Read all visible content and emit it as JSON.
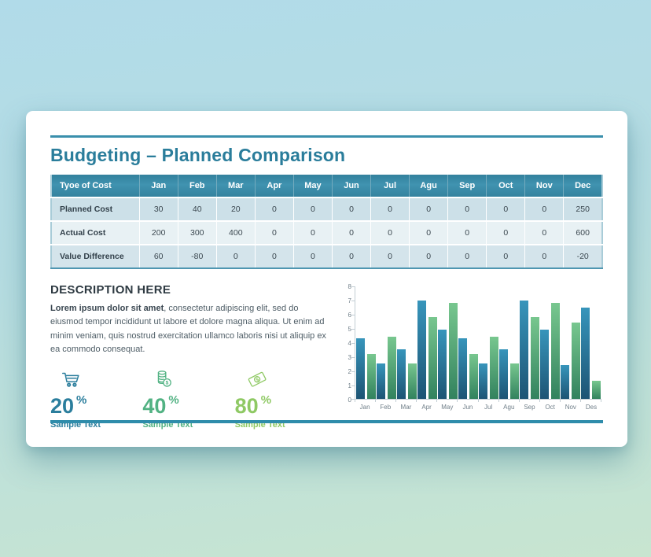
{
  "slide": {
    "title": "Budgeting – Planned Comparison"
  },
  "table": {
    "header": [
      "Tyoe of Cost",
      "Jan",
      "Feb",
      "Mar",
      "Apr",
      "May",
      "Jun",
      "Jul",
      "Agu",
      "Sep",
      "Oct",
      "Nov",
      "Dec"
    ],
    "rows": [
      {
        "label": "Planned Cost",
        "values": [
          30,
          40,
          20,
          0,
          0,
          0,
          0,
          0,
          0,
          0,
          0,
          250
        ]
      },
      {
        "label": "Actual Cost",
        "values": [
          200,
          300,
          400,
          0,
          0,
          0,
          0,
          0,
          0,
          0,
          0,
          600
        ]
      },
      {
        "label": "Value Difference",
        "values": [
          60,
          -80,
          0,
          0,
          0,
          0,
          0,
          0,
          0,
          0,
          0,
          -20
        ]
      }
    ]
  },
  "description": {
    "heading": "DESCRIPTION HERE",
    "lead": "Lorem ipsum dolor sit amet",
    "body": ", consectetur adipiscing elit, sed do eiusmod tempor incididunt ut labore et dolore magna aliqua. Ut enim ad minim veniam, quis nostrud exercitation ullamco laboris nisi ut aliquip ex ea commodo consequat."
  },
  "stats": [
    {
      "icon": "shopping-cart-icon",
      "value": "20",
      "unit": "%",
      "label": "Sample Text",
      "color": "#2b7e9d"
    },
    {
      "icon": "coins-icon",
      "value": "40",
      "unit": "%",
      "label": "Sample Text",
      "color": "#52b283"
    },
    {
      "icon": "banknote-icon",
      "value": "80",
      "unit": "%",
      "label": "Sample Text",
      "color": "#8fc964"
    }
  ],
  "chart_data": {
    "type": "bar",
    "categories": [
      "Jan",
      "Feb",
      "Mar",
      "Apr",
      "May",
      "Jun",
      "Jul",
      "Agu",
      "Sep",
      "Oct",
      "Nov",
      "Des"
    ],
    "series": [
      {
        "name": "blue",
        "color_bottom": "#1d5474",
        "color_top": "#3795bb",
        "values": [
          4.3,
          2.5,
          3.5,
          7.0,
          4.9,
          4.3,
          2.5,
          3.5,
          7.0,
          4.9,
          2.4,
          6.5
        ]
      },
      {
        "name": "green",
        "color_bottom": "#32825e",
        "color_top": "#78c78f",
        "values": [
          3.2,
          4.4,
          2.5,
          5.8,
          6.8,
          3.2,
          4.4,
          2.5,
          5.8,
          6.8,
          5.4,
          1.3
        ]
      }
    ],
    "title": "",
    "xlabel": "",
    "ylabel": "",
    "ylim": [
      0,
      8
    ],
    "yticks": [
      0,
      1,
      2,
      3,
      4,
      5,
      6,
      7,
      8
    ],
    "grid": false,
    "legend": false
  },
  "colors": {
    "accent_teal": "#2f8cab",
    "title_teal": "#2a7d9b",
    "table_header_bg": "#3a8ba8",
    "background_top": "#b1dbe9",
    "background_bottom": "#c8e5d0"
  }
}
